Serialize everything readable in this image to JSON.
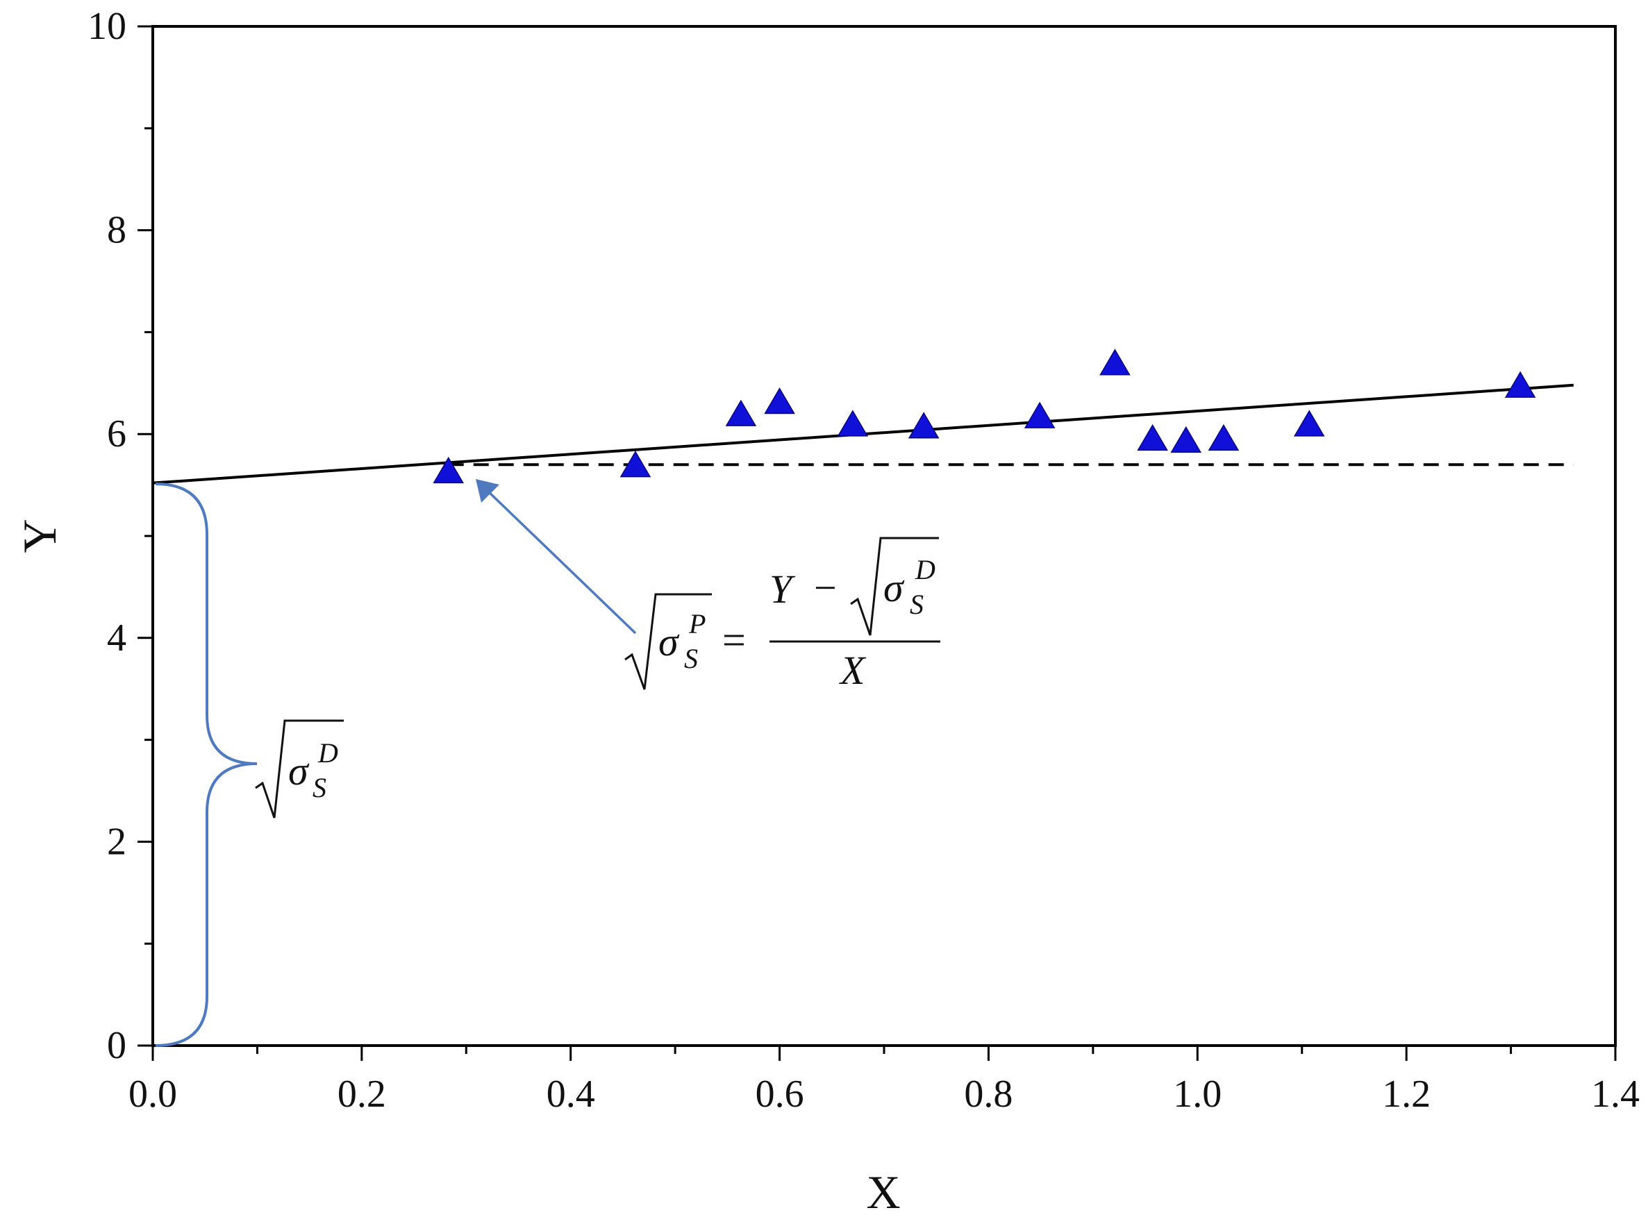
{
  "chart_data": {
    "type": "scatter",
    "title": "",
    "xlabel": "X",
    "ylabel": "Y",
    "xlim": [
      0,
      1.4
    ],
    "ylim": [
      0,
      10
    ],
    "x_ticks": [
      "0.0",
      "0.2",
      "0.4",
      "0.6",
      "0.8",
      "1.0",
      "1.2",
      "1.4"
    ],
    "y_ticks": [
      "0",
      "2",
      "4",
      "6",
      "8",
      "10"
    ],
    "grid": false,
    "legend": "none",
    "marker": "triangle",
    "marker_color": "#1010d8",
    "series": [
      {
        "x": [
          0.283,
          0.462,
          0.563,
          0.6,
          0.67,
          0.738,
          0.849,
          0.921,
          0.957,
          0.989,
          1.025,
          1.107,
          1.309
        ],
        "y": [
          5.62,
          5.68,
          6.18,
          6.3,
          6.08,
          6.06,
          6.16,
          6.68,
          5.94,
          5.92,
          5.94,
          6.08,
          6.46
        ]
      }
    ],
    "fit_line": {
      "x": [
        0.0,
        1.36
      ],
      "y": [
        5.52,
        6.48
      ],
      "style": "solid",
      "color": "#000000"
    },
    "reference_line": {
      "x": [
        0.283,
        1.36
      ],
      "y": [
        5.7,
        5.7
      ],
      "style": "dashed",
      "color": "#000000"
    },
    "annotations": {
      "color": "#4f7ac0",
      "brace_label": {
        "root": "σ",
        "sub": "S",
        "sup": "D"
      },
      "arrow_label": {
        "lhs_root": "σ",
        "lhs_sub": "S",
        "lhs_sup": "P",
        "equals": "=",
        "num_left": "Y",
        "minus": "−",
        "num_root": "σ",
        "num_sub": "S",
        "num_sup": "D",
        "den": "X"
      }
    }
  }
}
